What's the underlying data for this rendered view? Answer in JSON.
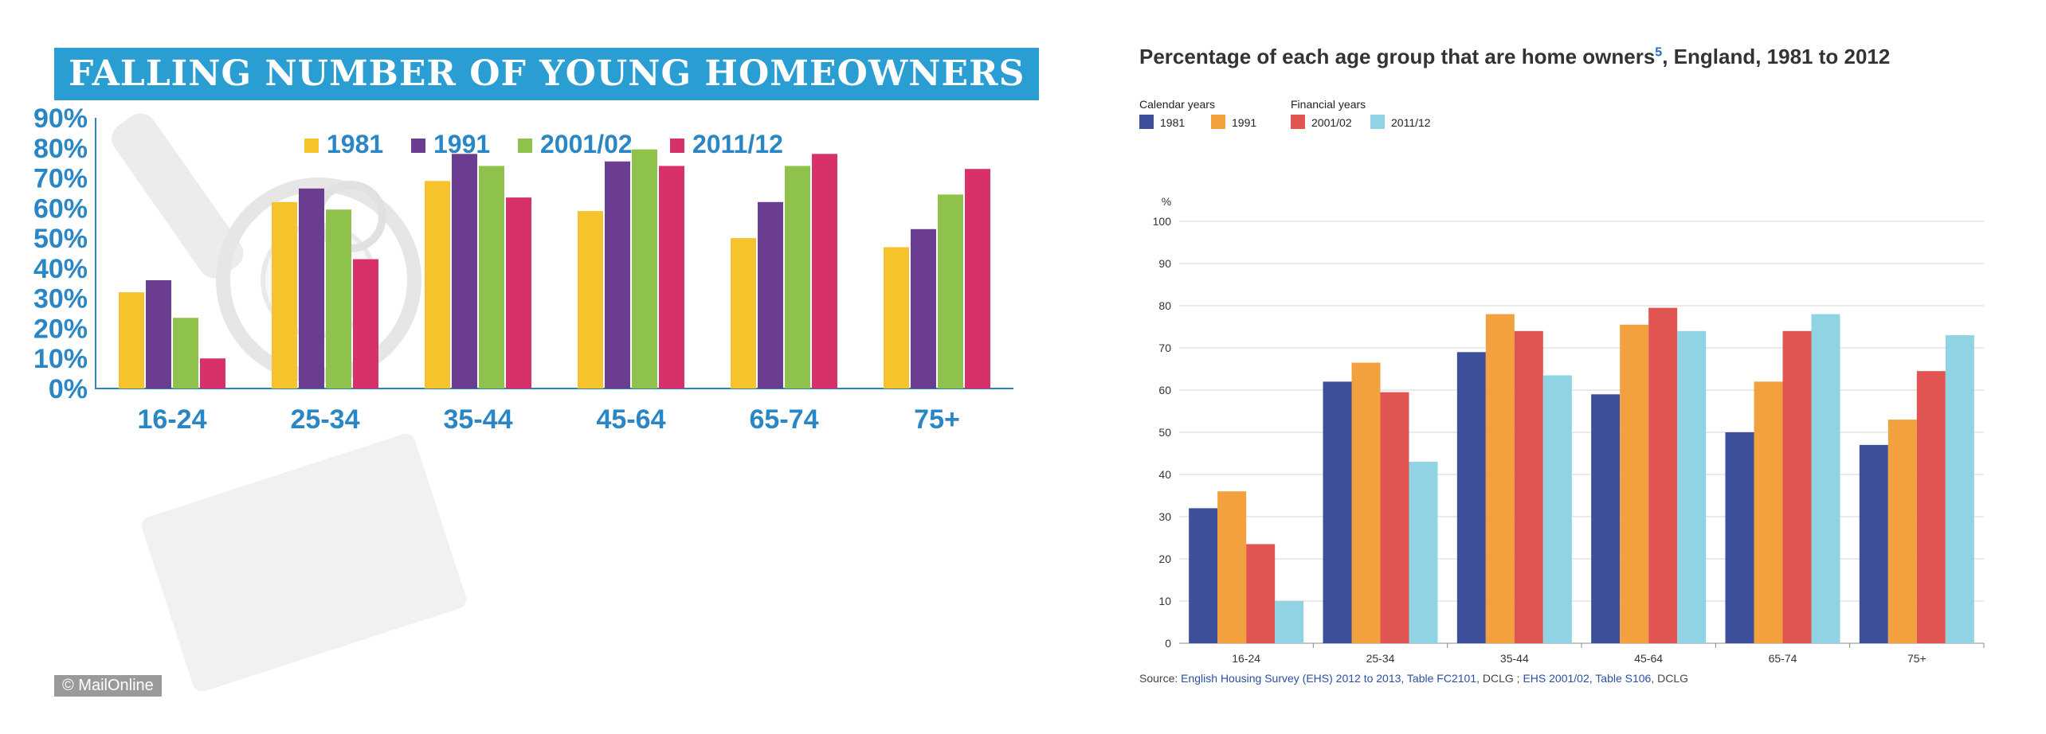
{
  "left": {
    "banner_title": "FALLING NUMBER OF YOUNG HOMEOWNERS",
    "credit": "© MailOnline",
    "colors": {
      "1981": "#f6c32c",
      "1991": "#6a3d90",
      "2001/02": "#8fc24a",
      "2011/12": "#d8306a",
      "axis": "#2a86c4"
    }
  },
  "right": {
    "title": "Percentage of each age group that are home owners",
    "title_sup": "5",
    "title_suffix": ", England, 1981 to 2012",
    "legend_group_calendar": "Calendar years",
    "legend_group_financial": "Financial years",
    "source_prefix": "Source: ",
    "source_link1": "English Housing Survey (EHS) 2012 to 2013, Table FC2101",
    "source_mid": ", DCLG ; ",
    "source_link2": "EHS 2001/02, Table S106",
    "source_suffix": ", DCLG",
    "colors": {
      "1981": "#3d4f9a",
      "1991": "#f3a03e",
      "2001/02": "#e05552",
      "2011/12": "#8fd3e4"
    }
  },
  "chart_data": [
    {
      "type": "bar",
      "title": "FALLING NUMBER OF YOUNG HOMEOWNERS",
      "categories": [
        "16-24",
        "25-34",
        "35-44",
        "45-64",
        "65-74",
        "75+"
      ],
      "series": [
        {
          "name": "1981",
          "values": [
            32,
            62,
            69,
            59,
            50,
            47
          ]
        },
        {
          "name": "1991",
          "values": [
            36,
            66.5,
            78,
            75.5,
            62,
            53
          ]
        },
        {
          "name": "2001/02",
          "values": [
            23.5,
            59.5,
            74,
            79.5,
            74,
            64.5
          ]
        },
        {
          "name": "2011/12",
          "values": [
            10,
            43,
            63.5,
            74,
            78,
            73
          ]
        }
      ],
      "ylim": [
        0,
        90
      ],
      "yticks": [
        "0%",
        "10%",
        "20%",
        "30%",
        "40%",
        "50%",
        "60%",
        "70%",
        "80%",
        "90%"
      ],
      "legend": "top",
      "grid": false
    },
    {
      "type": "bar",
      "title": "Percentage of each age group that are home owners5, England, 1981 to 2012",
      "categories": [
        "16-24",
        "25-34",
        "35-44",
        "45-64",
        "65-74",
        "75+"
      ],
      "series": [
        {
          "name": "1981",
          "values": [
            32,
            62,
            69,
            59,
            50,
            47
          ]
        },
        {
          "name": "1991",
          "values": [
            36,
            66.5,
            78,
            75.5,
            62,
            53
          ]
        },
        {
          "name": "2001/02",
          "values": [
            23.5,
            59.5,
            74,
            79.5,
            74,
            64.5
          ]
        },
        {
          "name": "2011/12",
          "values": [
            10,
            43,
            63.5,
            74,
            78,
            73
          ]
        }
      ],
      "ylabel": "%",
      "ylim": [
        0,
        100
      ],
      "yticks": [
        "0",
        "10",
        "20",
        "30",
        "40",
        "50",
        "60",
        "70",
        "80",
        "90",
        "100"
      ],
      "legend": "top-left",
      "grid": true
    }
  ]
}
